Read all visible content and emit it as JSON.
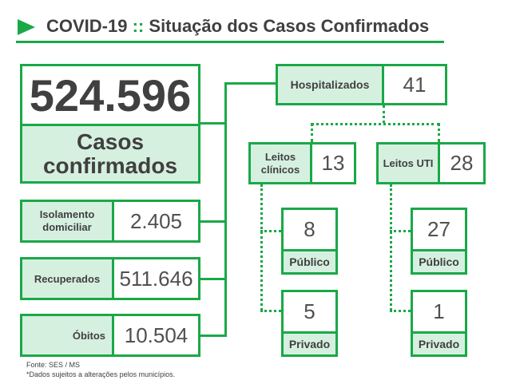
{
  "header": {
    "title_left": "COVID-19",
    "separator": "::",
    "title_right": "Situação dos Casos Confirmados"
  },
  "total": {
    "value": "524.596",
    "label": "Casos confirmados"
  },
  "left_stats": [
    {
      "label": "Isolamento domiciliar",
      "value": "2.405"
    },
    {
      "label": "Recuperados",
      "value": "511.646"
    },
    {
      "label": "Óbitos",
      "value": "10.504"
    }
  ],
  "hospitalizados": {
    "label": "Hospitalizados",
    "value": "41"
  },
  "leitos_clinicos": {
    "label": "Leitos clínicos",
    "value": "13",
    "publico": {
      "value": "8",
      "label": "Público"
    },
    "privado": {
      "value": "5",
      "label": "Privado"
    }
  },
  "leitos_uti": {
    "label": "Leitos UTI",
    "value": "28",
    "publico": {
      "value": "27",
      "label": "Público"
    },
    "privado": {
      "value": "1",
      "label": "Privado"
    }
  },
  "footer": {
    "source": "Fonte: SES / MS",
    "note": "*Dados sujeitos a alterações pelos municípios."
  },
  "colors": {
    "accent": "#1aa848",
    "label_bg": "#d6f0e0",
    "text": "#404040"
  },
  "icons": {
    "header_marker": "play-triangle-icon"
  }
}
